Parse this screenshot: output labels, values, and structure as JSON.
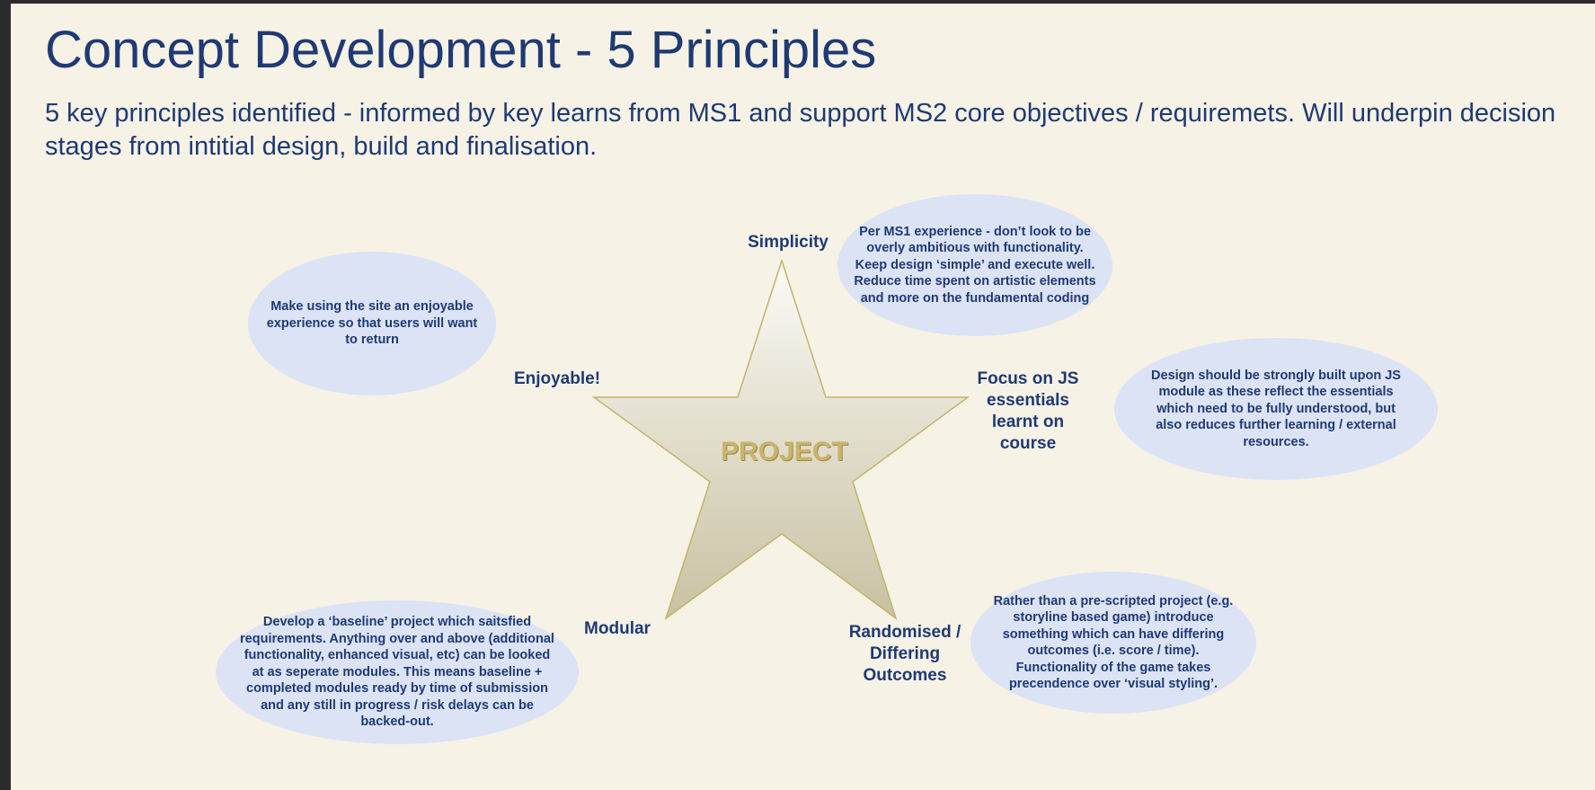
{
  "slide": {
    "title": "Concept Development - 5 Principles",
    "subtitle": "5 key principles identified - informed by key learns from MS1 and support MS2 core objectives / requiremets. Will underpin decision stages from intitial design, build and finalisation."
  },
  "diagram": {
    "center_label": "PROJECT",
    "principles": {
      "simplicity": {
        "label": "Simplicity",
        "description": "Per MS1 experience - don’t look to be overly ambitious with functionality. Keep design ‘simple’ and execute well. Reduce time spent on artistic elements and more on the fundamental coding"
      },
      "focus_js": {
        "label": "Focus on JS essentials learnt on course",
        "description": "Design should be strongly built upon JS module as these reflect the essentials which need to be fully understood, but also reduces  further learning / external  resources."
      },
      "randomised": {
        "label": "Randomised / Differing Outcomes",
        "description": "Rather than a pre-scripted project (e.g. storyline based game) introduce something which can have differing outcomes (i.e. score / time). Functionality of the game takes precendence over ‘visual styling’."
      },
      "modular": {
        "label": "Modular",
        "description": "Develop a ‘baseline’ project which saitsfied requirements. Anything over and above (additional functionality, enhanced visual, etc) can be looked at as seperate modules. This means baseline + completed modules ready by time of submission and any still in progress / risk delays can be backed-out."
      },
      "enjoyable": {
        "label": "Enjoyable!",
        "description": "Make using the site an enjoyable experience so that users will want to return"
      }
    }
  },
  "colors": {
    "background": "#f6f2e6",
    "text": "#1f3a73",
    "bubble": "#dbe3f5",
    "star_top": "#fbfaf6",
    "star_bottom": "#c8c1a2",
    "star_border": "#c2b46a"
  }
}
